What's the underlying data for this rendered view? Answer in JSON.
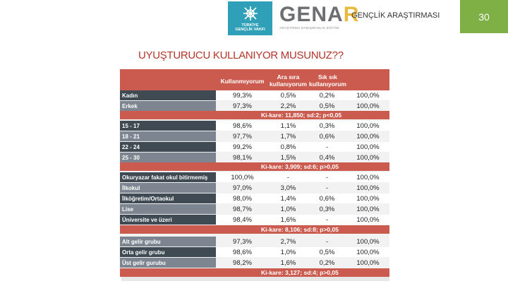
{
  "header": {
    "logo1_text_line1": "TÜRKİYE",
    "logo1_text_line2": "GENÇLİK VAKFI",
    "genar_main": "GENA",
    "genar_r": "R",
    "genar_sub": "ARAŞTIRMA DANIŞMANLIK EĞİTİM",
    "title": "GENÇLİK ARAŞTIRMASI",
    "page_number": "30",
    "accent_color": "#7eb045"
  },
  "slide_title": "UYUŞTURUCU KULLANIYOR MUSUNUZ??",
  "table": {
    "header_cols": [
      "Kullanmıyorum",
      "Ara sıra kullanıyorum",
      "Sık sık kullanıyorum"
    ],
    "header_col1": "Kullanmıyorum",
    "header_col2a": "Ara sıra",
    "header_col2b": "kullanıyorum",
    "header_col3a": "Sık sık",
    "header_col3b": "kullanıyorum",
    "rows": [
      {
        "label": "Kadın",
        "v1": "99,3%",
        "v2": "0,5%",
        "v3": "0,2%",
        "v4": "100,0%"
      },
      {
        "label": "Erkek",
        "v1": "97,3%",
        "v2": "2,2%",
        "v3": "0,5%",
        "v4": "100,0%"
      },
      {
        "label": "15 - 17",
        "v1": "98,6%",
        "v2": "1,1%",
        "v3": "0,3%",
        "v4": "100,0%"
      },
      {
        "label": "18 - 21",
        "v1": "97,7%",
        "v2": "1,7%",
        "v3": "0,6%",
        "v4": "100,0%"
      },
      {
        "label": "22 - 24",
        "v1": "99,2%",
        "v2": "0,8%",
        "v3": "-",
        "v4": "100,0%"
      },
      {
        "label": "25 - 30",
        "v1": "98,1%",
        "v2": "1,5%",
        "v3": "0,4%",
        "v4": "100,0%"
      },
      {
        "label": "Okuryazar fakat okul bitirmemiş",
        "v1": "100,0%",
        "v2": "-",
        "v3": "-",
        "v4": "100,0%"
      },
      {
        "label": "İlkokul",
        "v1": "97,0%",
        "v2": "3,0%",
        "v3": "-",
        "v4": "100,0%"
      },
      {
        "label": "İlköğretim/Ortaokul",
        "v1": "98,0%",
        "v2": "1,4%",
        "v3": "0,6%",
        "v4": "100,0%"
      },
      {
        "label": "Lise",
        "v1": "98,7%",
        "v2": "1,0%",
        "v3": "0,3%",
        "v4": "100,0%"
      },
      {
        "label": "Üniversite ve üzeri",
        "v1": "98,4%",
        "v2": "1,6%",
        "v3": "-",
        "v4": "100,0%"
      },
      {
        "label": "Alt gelir grubu",
        "v1": "97,3%",
        "v2": "2,7%",
        "v3": "-",
        "v4": "100,0%"
      },
      {
        "label": "Orta gelir grubu",
        "v1": "98,6%",
        "v2": "1,0%",
        "v3": "0,5%",
        "v4": "100,0%"
      },
      {
        "label": "Üst gelir gurubu",
        "v1": "98,2%",
        "v2": "1,6%",
        "v3": "0,2%",
        "v4": "100,0%"
      }
    ],
    "stats": [
      "Ki-kare: 11,850; sd:2; p<0,05",
      "Ki-kare: 3,909; sd:6; p>0,05",
      "Ki-kare: 8,106; sd:8; p>0,05",
      "Ki-kare: 3,127; sd:4; p>0,05"
    ],
    "header_bg": "#cc5b4f",
    "label_bg_dark": "#3f4a53",
    "label_bg_light": "#7d8690"
  }
}
